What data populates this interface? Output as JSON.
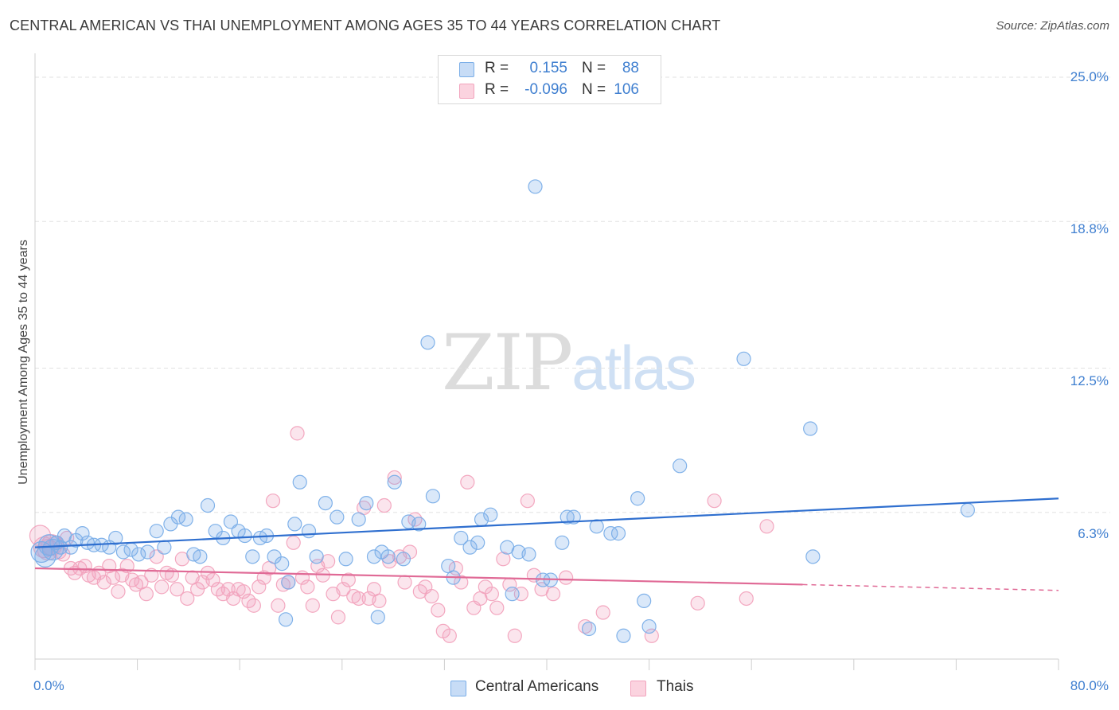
{
  "title": "CENTRAL AMERICAN VS THAI UNEMPLOYMENT AMONG AGES 35 TO 44 YEARS CORRELATION CHART",
  "source": "Source: ZipAtlas.com",
  "watermark": {
    "zip": "ZIP",
    "atlas": "atlas"
  },
  "legend_stats": {
    "series1": {
      "r_label": "R =",
      "r_value": "0.155",
      "n_label": "N =",
      "n_value": "88",
      "color": "#7aaee8"
    },
    "series2": {
      "r_label": "R =",
      "r_value": "-0.096",
      "n_label": "N =",
      "n_value": "106",
      "color": "#f2a3bd"
    }
  },
  "chart_data": {
    "type": "scatter",
    "title": "CENTRAL AMERICAN VS THAI UNEMPLOYMENT AMONG AGES 35 TO 44 YEARS CORRELATION CHART",
    "xlabel": "",
    "ylabel": "Unemployment Among Ages 35 to 44 years",
    "xlim": [
      0,
      80
    ],
    "ylim": [
      0,
      25
    ],
    "x_tick_labels": [
      "0.0%",
      "80.0%"
    ],
    "y_ticks": [
      6.3,
      12.5,
      18.8,
      25.0
    ],
    "y_tick_labels": [
      "6.3%",
      "12.5%",
      "18.8%",
      "25.0%"
    ],
    "grid": true,
    "legend_placement": "bottom-center",
    "series": [
      {
        "name": "Central Americans",
        "color": "#7aaee8",
        "trend_color": "#2f6fcf",
        "trend": {
          "x": [
            0,
            80
          ],
          "y": [
            4.8,
            6.9
          ]
        },
        "points": [
          [
            0.5,
            4.6
          ],
          [
            0.8,
            4.4
          ],
          [
            1.1,
            4.9
          ],
          [
            1.4,
            4.7
          ],
          [
            1.7,
            5.0
          ],
          [
            2.0,
            4.8
          ],
          [
            2.3,
            5.3
          ],
          [
            2.8,
            4.8
          ],
          [
            3.2,
            5.1
          ],
          [
            3.7,
            5.4
          ],
          [
            4.1,
            5.0
          ],
          [
            4.6,
            4.9
          ],
          [
            5.2,
            4.9
          ],
          [
            5.8,
            4.8
          ],
          [
            6.3,
            5.2
          ],
          [
            6.9,
            4.6
          ],
          [
            7.5,
            4.7
          ],
          [
            8.1,
            4.5
          ],
          [
            8.8,
            4.6
          ],
          [
            9.5,
            5.5
          ],
          [
            10.1,
            4.8
          ],
          [
            10.6,
            5.8
          ],
          [
            11.2,
            6.1
          ],
          [
            11.8,
            6.0
          ],
          [
            12.4,
            4.5
          ],
          [
            12.9,
            4.4
          ],
          [
            13.5,
            6.6
          ],
          [
            14.1,
            5.5
          ],
          [
            14.7,
            5.2
          ],
          [
            15.3,
            5.9
          ],
          [
            15.9,
            5.5
          ],
          [
            16.4,
            5.3
          ],
          [
            17.0,
            4.4
          ],
          [
            17.6,
            5.2
          ],
          [
            18.1,
            5.3
          ],
          [
            18.7,
            4.4
          ],
          [
            19.3,
            4.1
          ],
          [
            19.8,
            3.3
          ],
          [
            20.3,
            5.8
          ],
          [
            20.7,
            7.6
          ],
          [
            21.4,
            5.5
          ],
          [
            22.0,
            4.4
          ],
          [
            22.7,
            6.7
          ],
          [
            23.6,
            6.1
          ],
          [
            24.3,
            4.3
          ],
          [
            25.3,
            6.0
          ],
          [
            25.9,
            6.7
          ],
          [
            26.5,
            4.4
          ],
          [
            27.1,
            4.6
          ],
          [
            27.6,
            4.4
          ],
          [
            28.1,
            7.6
          ],
          [
            28.8,
            4.3
          ],
          [
            29.2,
            5.9
          ],
          [
            30.0,
            5.8
          ],
          [
            30.7,
            13.6
          ],
          [
            31.1,
            7.0
          ],
          [
            32.3,
            4.0
          ],
          [
            32.7,
            3.5
          ],
          [
            33.3,
            5.2
          ],
          [
            34.0,
            4.8
          ],
          [
            34.6,
            5.0
          ],
          [
            34.9,
            6.0
          ],
          [
            35.6,
            6.2
          ],
          [
            36.9,
            4.8
          ],
          [
            37.3,
            2.8
          ],
          [
            37.8,
            4.6
          ],
          [
            38.6,
            4.5
          ],
          [
            39.1,
            20.3
          ],
          [
            39.7,
            3.4
          ],
          [
            40.3,
            3.4
          ],
          [
            41.2,
            5.0
          ],
          [
            41.6,
            6.1
          ],
          [
            42.1,
            6.1
          ],
          [
            43.3,
            1.3
          ],
          [
            43.9,
            5.7
          ],
          [
            45.0,
            5.4
          ],
          [
            45.6,
            5.4
          ],
          [
            46.0,
            1.0
          ],
          [
            47.1,
            6.9
          ],
          [
            47.6,
            2.5
          ],
          [
            48.0,
            1.4
          ],
          [
            50.4,
            8.3
          ],
          [
            55.4,
            12.9
          ],
          [
            60.6,
            9.9
          ],
          [
            60.8,
            4.4
          ],
          [
            72.9,
            6.4
          ],
          [
            19.6,
            1.7
          ],
          [
            26.8,
            1.8
          ]
        ]
      },
      {
        "name": "Thais",
        "color": "#f2a3bd",
        "trend_color": "#e06a96",
        "trend": {
          "x": [
            0,
            60
          ],
          "y": [
            3.9,
            3.2
          ]
        },
        "trend_dashed": {
          "x": [
            60,
            80
          ],
          "y": [
            3.2,
            2.95
          ]
        },
        "points": [
          [
            0.4,
            5.3
          ],
          [
            0.7,
            4.8
          ],
          [
            1.0,
            4.7
          ],
          [
            1.3,
            4.9
          ],
          [
            1.6,
            5.0
          ],
          [
            1.9,
            4.6
          ],
          [
            2.2,
            4.5
          ],
          [
            2.5,
            5.2
          ],
          [
            2.8,
            3.9
          ],
          [
            3.1,
            3.7
          ],
          [
            3.5,
            3.9
          ],
          [
            3.9,
            4.0
          ],
          [
            4.2,
            3.6
          ],
          [
            4.6,
            3.5
          ],
          [
            5.0,
            3.7
          ],
          [
            5.4,
            3.3
          ],
          [
            5.8,
            4.0
          ],
          [
            6.1,
            3.5
          ],
          [
            6.5,
            2.9
          ],
          [
            6.8,
            3.6
          ],
          [
            7.2,
            4.0
          ],
          [
            7.6,
            3.4
          ],
          [
            7.9,
            3.2
          ],
          [
            8.3,
            3.3
          ],
          [
            8.7,
            2.8
          ],
          [
            9.1,
            3.6
          ],
          [
            9.5,
            4.4
          ],
          [
            9.9,
            3.1
          ],
          [
            10.3,
            3.7
          ],
          [
            10.7,
            3.6
          ],
          [
            11.1,
            3.0
          ],
          [
            11.5,
            4.3
          ],
          [
            11.9,
            2.6
          ],
          [
            12.3,
            3.5
          ],
          [
            12.7,
            3.0
          ],
          [
            13.1,
            3.3
          ],
          [
            13.5,
            3.7
          ],
          [
            13.9,
            3.4
          ],
          [
            14.3,
            3.0
          ],
          [
            14.7,
            2.8
          ],
          [
            15.1,
            3.0
          ],
          [
            15.5,
            2.6
          ],
          [
            15.9,
            3.0
          ],
          [
            16.3,
            2.9
          ],
          [
            16.7,
            2.5
          ],
          [
            17.1,
            2.3
          ],
          [
            17.5,
            3.1
          ],
          [
            17.9,
            3.5
          ],
          [
            18.3,
            3.9
          ],
          [
            18.6,
            6.8
          ],
          [
            19.0,
            2.3
          ],
          [
            19.4,
            3.2
          ],
          [
            19.8,
            3.3
          ],
          [
            20.2,
            5.0
          ],
          [
            20.5,
            9.7
          ],
          [
            20.9,
            3.5
          ],
          [
            21.3,
            3.1
          ],
          [
            21.7,
            2.3
          ],
          [
            22.1,
            4.0
          ],
          [
            22.5,
            3.6
          ],
          [
            22.9,
            4.2
          ],
          [
            23.3,
            2.8
          ],
          [
            23.7,
            1.8
          ],
          [
            24.1,
            3.0
          ],
          [
            24.5,
            3.4
          ],
          [
            24.9,
            2.7
          ],
          [
            25.3,
            2.6
          ],
          [
            25.7,
            6.5
          ],
          [
            26.1,
            2.6
          ],
          [
            26.5,
            3.0
          ],
          [
            26.9,
            2.5
          ],
          [
            27.3,
            6.6
          ],
          [
            27.7,
            4.2
          ],
          [
            28.1,
            7.8
          ],
          [
            28.5,
            4.4
          ],
          [
            28.9,
            3.3
          ],
          [
            29.3,
            4.6
          ],
          [
            29.7,
            6.0
          ],
          [
            30.1,
            2.9
          ],
          [
            30.5,
            3.1
          ],
          [
            31.0,
            2.7
          ],
          [
            31.5,
            2.1
          ],
          [
            31.9,
            1.2
          ],
          [
            32.4,
            1.0
          ],
          [
            32.9,
            3.9
          ],
          [
            33.3,
            3.3
          ],
          [
            33.8,
            7.6
          ],
          [
            34.3,
            2.2
          ],
          [
            34.8,
            2.6
          ],
          [
            35.2,
            3.1
          ],
          [
            35.7,
            2.8
          ],
          [
            36.1,
            2.2
          ],
          [
            36.6,
            4.3
          ],
          [
            37.1,
            3.2
          ],
          [
            37.5,
            1.0
          ],
          [
            38.0,
            2.8
          ],
          [
            38.5,
            6.8
          ],
          [
            39.0,
            3.6
          ],
          [
            39.6,
            3.0
          ],
          [
            40.5,
            2.8
          ],
          [
            41.5,
            3.5
          ],
          [
            43.0,
            1.4
          ],
          [
            44.4,
            2.0
          ],
          [
            48.2,
            1.0
          ],
          [
            51.8,
            2.4
          ],
          [
            53.1,
            6.8
          ],
          [
            55.6,
            2.6
          ],
          [
            57.2,
            5.7
          ]
        ]
      }
    ]
  },
  "axis_labels": {
    "ylabel": "Unemployment Among Ages 35 to 44 years",
    "x_min": "0.0%",
    "x_max": "80.0%",
    "y_ticks": [
      "25.0%",
      "18.8%",
      "12.5%",
      "6.3%"
    ]
  },
  "bottom_legend": {
    "series1": "Central Americans",
    "series2": "Thais"
  }
}
